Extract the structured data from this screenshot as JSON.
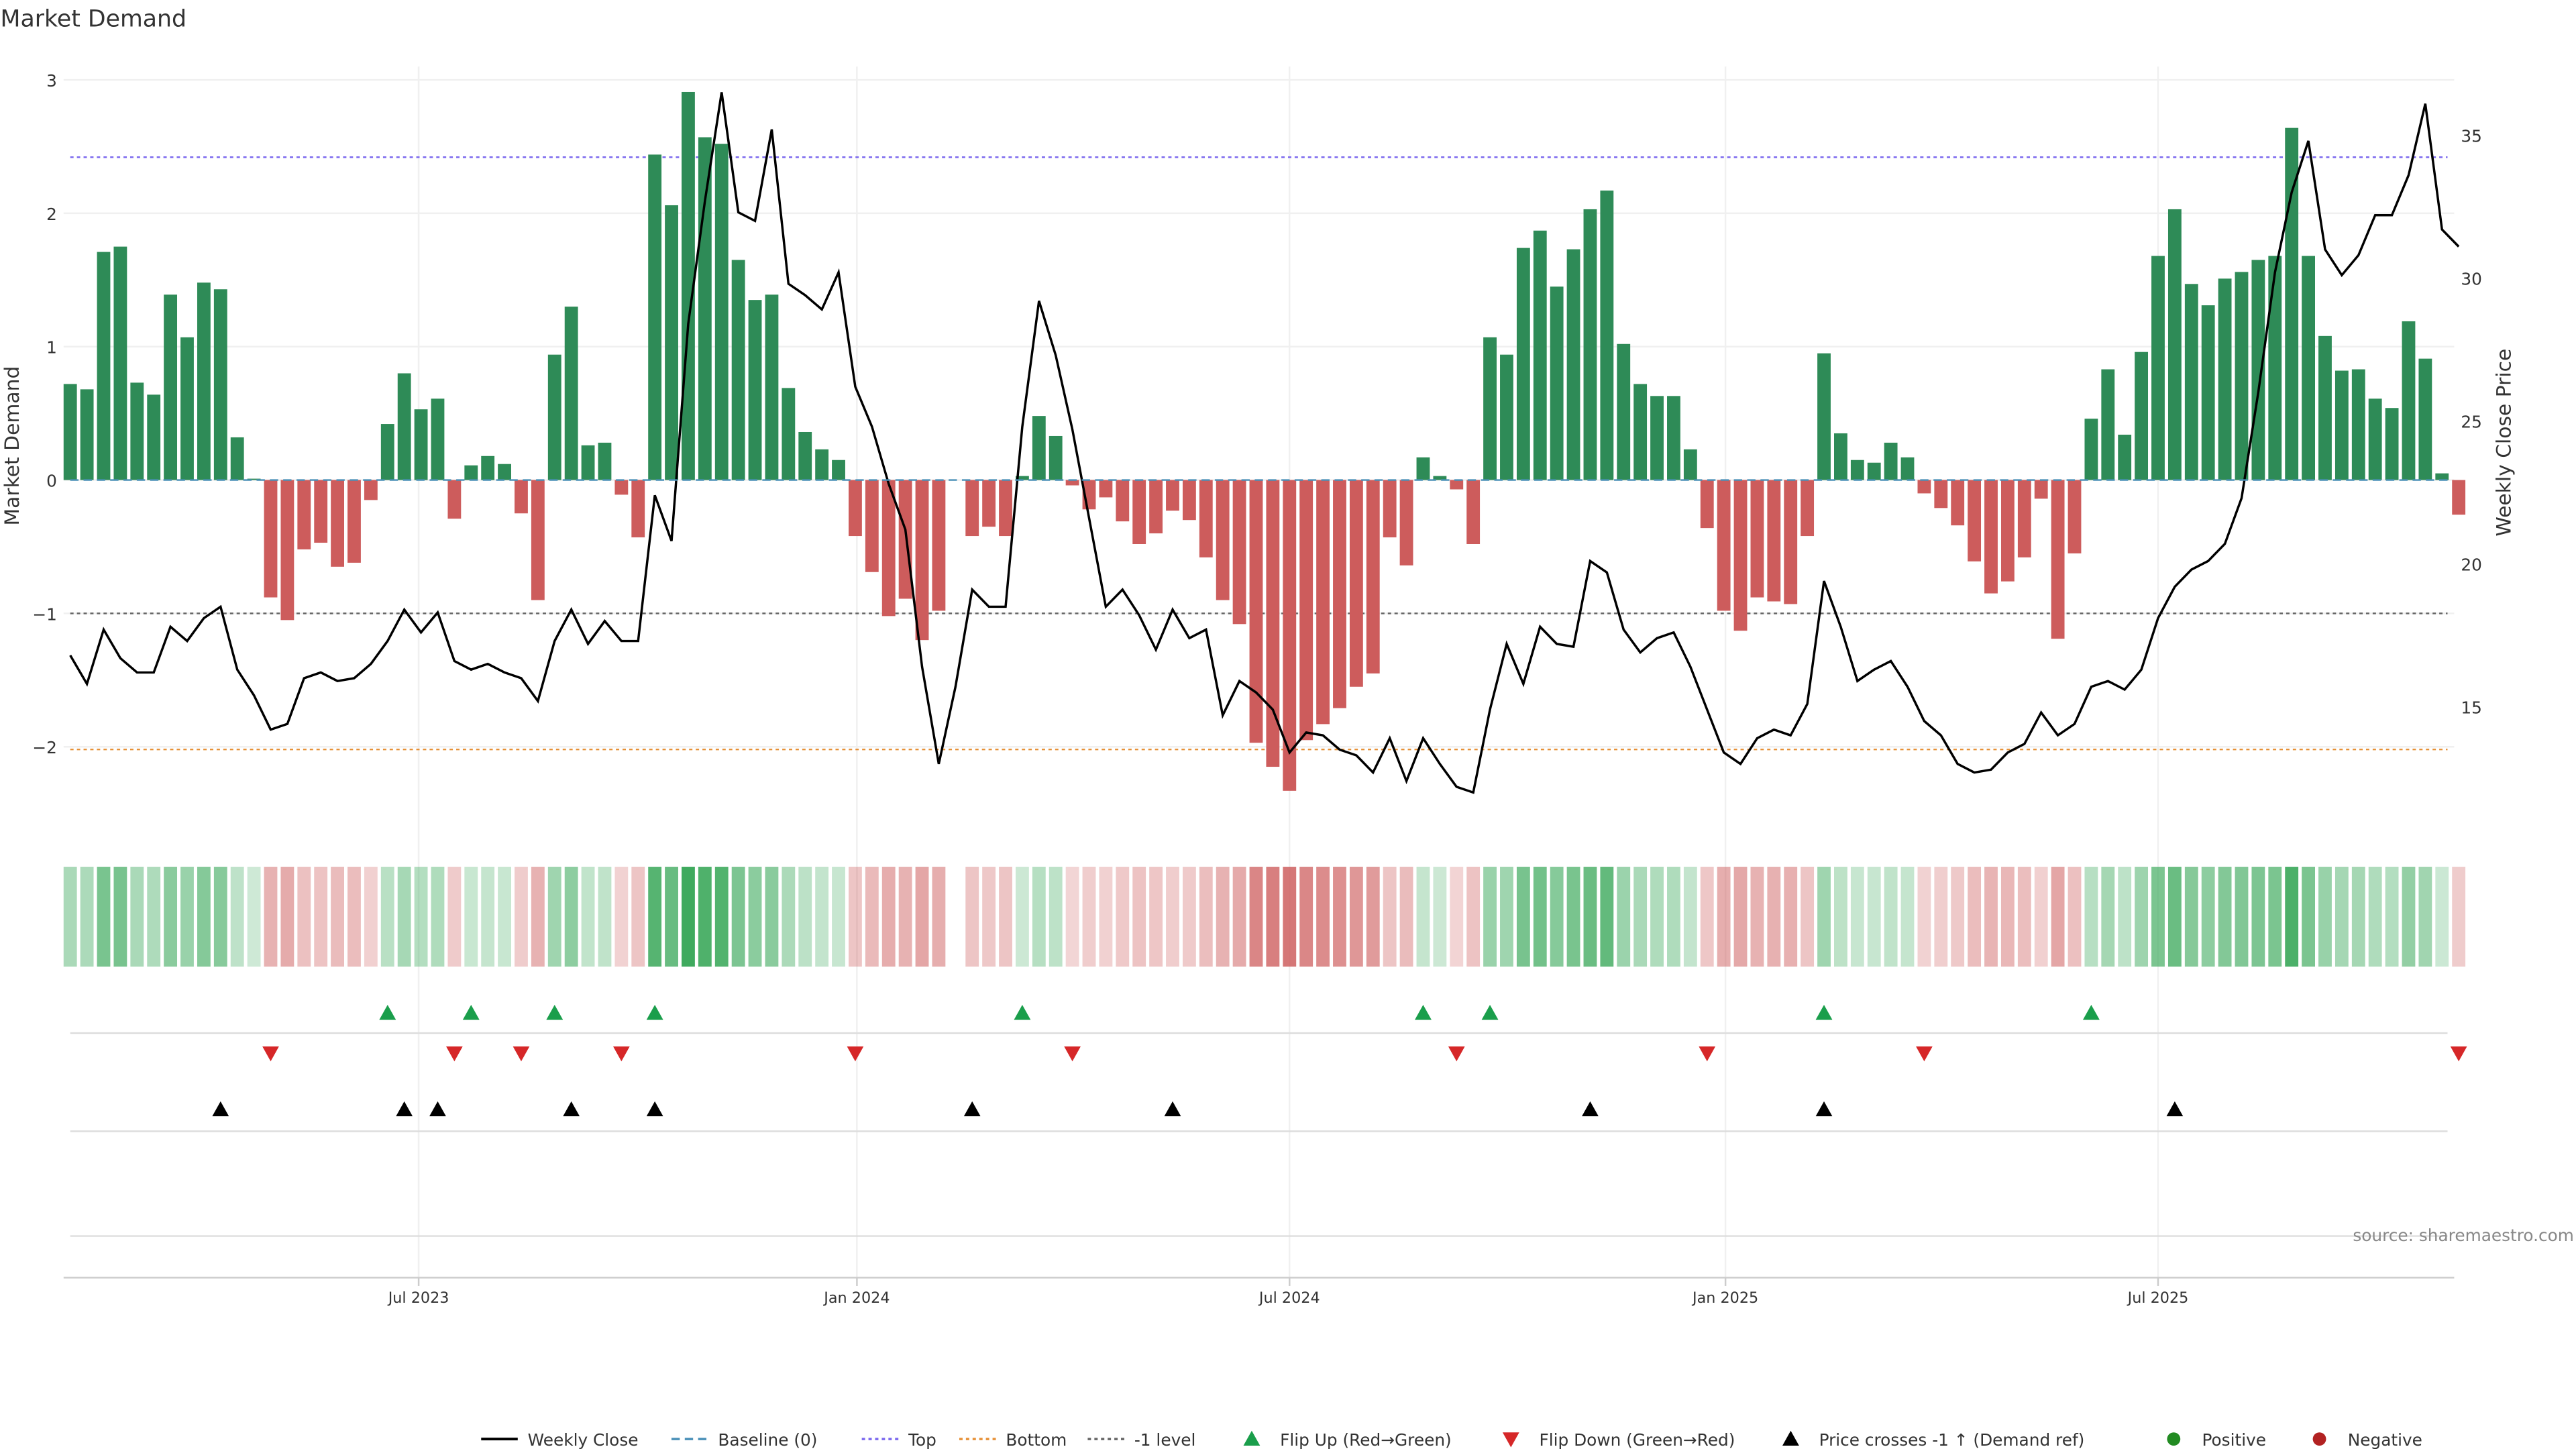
{
  "chart_data": {
    "type": "bar",
    "title": "Market Demand",
    "ylabel": "Market Demand",
    "y2label": "Weekly Close Price",
    "ylim": [
      -2.6,
      3.1
    ],
    "y2lim": [
      10.8,
      37.4
    ],
    "yticks": [
      -2,
      -1,
      0,
      1,
      2,
      3
    ],
    "y2ticks": [
      15,
      20,
      25,
      30,
      35
    ],
    "x_start": "2023-02-05",
    "x_freq": "weekly",
    "xticks": [
      {
        "label": "Jul 2023",
        "week": 20.86
      },
      {
        "label": "Jan 2024",
        "week": 47.1
      },
      {
        "label": "Jul 2024",
        "week": 73.0
      },
      {
        "label": "Jan 2025",
        "week": 99.1
      },
      {
        "label": "Jul 2025",
        "week": 125.0
      }
    ],
    "levels": {
      "top": 2.42,
      "bottom": -2.02,
      "minus_one": -1,
      "baseline": 0
    },
    "demand": [
      0.72,
      0.68,
      1.71,
      1.75,
      0.73,
      0.64,
      1.39,
      1.07,
      1.48,
      1.43,
      0.32,
      0.01,
      -0.88,
      -1.05,
      -0.52,
      -0.47,
      -0.65,
      -0.62,
      -0.15,
      0.42,
      0.8,
      0.53,
      0.61,
      -0.29,
      0.11,
      0.18,
      0.12,
      -0.25,
      -0.9,
      0.94,
      1.3,
      0.26,
      0.28,
      -0.11,
      -0.43,
      2.44,
      2.06,
      2.91,
      2.57,
      2.52,
      1.65,
      1.35,
      1.39,
      0.69,
      0.36,
      0.23,
      0.15,
      -0.42,
      -0.69,
      -1.02,
      -0.89,
      -1.2,
      -0.98,
      null,
      -0.42,
      -0.35,
      -0.42,
      0.03,
      0.48,
      0.33,
      -0.04,
      -0.22,
      -0.13,
      -0.31,
      -0.48,
      -0.4,
      -0.23,
      -0.3,
      -0.58,
      -0.9,
      -1.08,
      -1.97,
      -2.15,
      -2.33,
      -1.95,
      -1.83,
      -1.71,
      -1.55,
      -1.45,
      -0.43,
      -0.64,
      0.17,
      0.03,
      -0.07,
      -0.48,
      1.07,
      0.94,
      1.74,
      1.87,
      1.45,
      1.73,
      2.03,
      2.17,
      1.02,
      0.72,
      0.63,
      0.63,
      0.23,
      -0.36,
      -0.98,
      -1.13,
      -0.88,
      -0.91,
      -0.93,
      -0.42,
      0.95,
      0.35,
      0.15,
      0.13,
      0.28,
      0.17,
      -0.1,
      -0.21,
      -0.34,
      -0.61,
      -0.85,
      -0.76,
      -0.58,
      -0.14,
      -1.19,
      -0.55,
      0.46,
      0.83,
      0.34,
      0.96,
      1.68,
      2.03,
      1.47,
      1.31,
      1.51,
      1.56,
      1.65,
      1.68,
      2.64,
      1.68,
      1.08,
      0.82,
      0.83,
      0.61,
      0.54,
      1.19,
      0.91,
      0.05,
      -0.26
    ],
    "price": [
      16.8,
      15.8,
      17.7,
      16.7,
      16.2,
      16.2,
      17.8,
      17.3,
      18.1,
      18.5,
      16.3,
      15.4,
      14.2,
      14.4,
      16.0,
      16.2,
      15.9,
      16.0,
      16.5,
      17.3,
      18.4,
      17.6,
      18.3,
      16.6,
      16.3,
      16.5,
      16.2,
      16.0,
      15.2,
      17.3,
      18.4,
      17.2,
      18.0,
      17.3,
      17.3,
      22.4,
      20.8,
      28.4,
      32.7,
      36.5,
      32.3,
      32.0,
      35.2,
      29.8,
      29.4,
      28.9,
      30.2,
      26.2,
      24.8,
      22.8,
      21.2,
      16.4,
      13.0,
      15.7,
      19.1,
      18.5,
      18.5,
      24.8,
      29.2,
      27.3,
      24.7,
      21.6,
      18.5,
      19.1,
      18.2,
      17.0,
      18.4,
      17.4,
      17.7,
      14.7,
      15.9,
      15.5,
      14.9,
      13.4,
      14.1,
      14.0,
      13.5,
      13.3,
      12.7,
      13.9,
      12.4,
      13.9,
      13.0,
      12.2,
      12.0,
      14.9,
      17.2,
      15.8,
      17.8,
      17.2,
      17.1,
      20.1,
      19.7,
      17.7,
      16.9,
      17.4,
      17.6,
      16.4,
      14.9,
      13.4,
      13.0,
      13.9,
      14.2,
      14.0,
      15.1,
      19.4,
      17.8,
      15.9,
      16.3,
      16.6,
      15.7,
      14.5,
      14.0,
      13.0,
      12.7,
      12.8,
      13.4,
      13.7,
      14.8,
      14.0,
      14.4,
      15.7,
      15.9,
      15.6,
      16.3,
      18.1,
      19.2,
      19.8,
      20.1,
      20.7,
      22.3,
      26.0,
      30.2,
      33.0,
      34.8,
      31.0,
      30.1,
      30.8,
      32.2,
      32.2,
      33.6,
      36.1,
      31.7,
      31.1
    ],
    "price_cross_weeks": [
      9,
      20,
      22,
      30,
      35,
      54,
      66,
      91,
      105,
      126
    ],
    "colors": {
      "positive": "#2e8b57",
      "negative": "#cd5c5c",
      "heat_pos": "#3aa85a",
      "heat_neg": "#cd5c5c",
      "top": "#7b68ee",
      "bottom": "#e69138",
      "minus_one": "#666666",
      "baseline": "#4a90b8",
      "flip_up": "#1a9e4b",
      "flip_down": "#d62728",
      "cross": "#000000",
      "dot_pos": "#228b22",
      "dot_neg": "#b22222"
    },
    "legend": [
      {
        "label": "Weekly Close",
        "kind": "line"
      },
      {
        "label": "Baseline (0)",
        "kind": "dashed"
      },
      {
        "label": "Top",
        "kind": "dotted-top"
      },
      {
        "label": "Bottom",
        "kind": "dotted-bottom"
      },
      {
        "label": "-1 level",
        "kind": "dotted-minus"
      },
      {
        "label": "Flip Up (Red→Green)",
        "kind": "tri-up"
      },
      {
        "label": "Flip Down (Green→Red)",
        "kind": "tri-down"
      },
      {
        "label": "Price crosses -1 ↑ (Demand ref)",
        "kind": "tri-cross"
      },
      {
        "label": "Positive",
        "kind": "dot-pos"
      },
      {
        "label": "Negative",
        "kind": "dot-neg"
      }
    ],
    "source": "source: sharemaestro.com"
  }
}
